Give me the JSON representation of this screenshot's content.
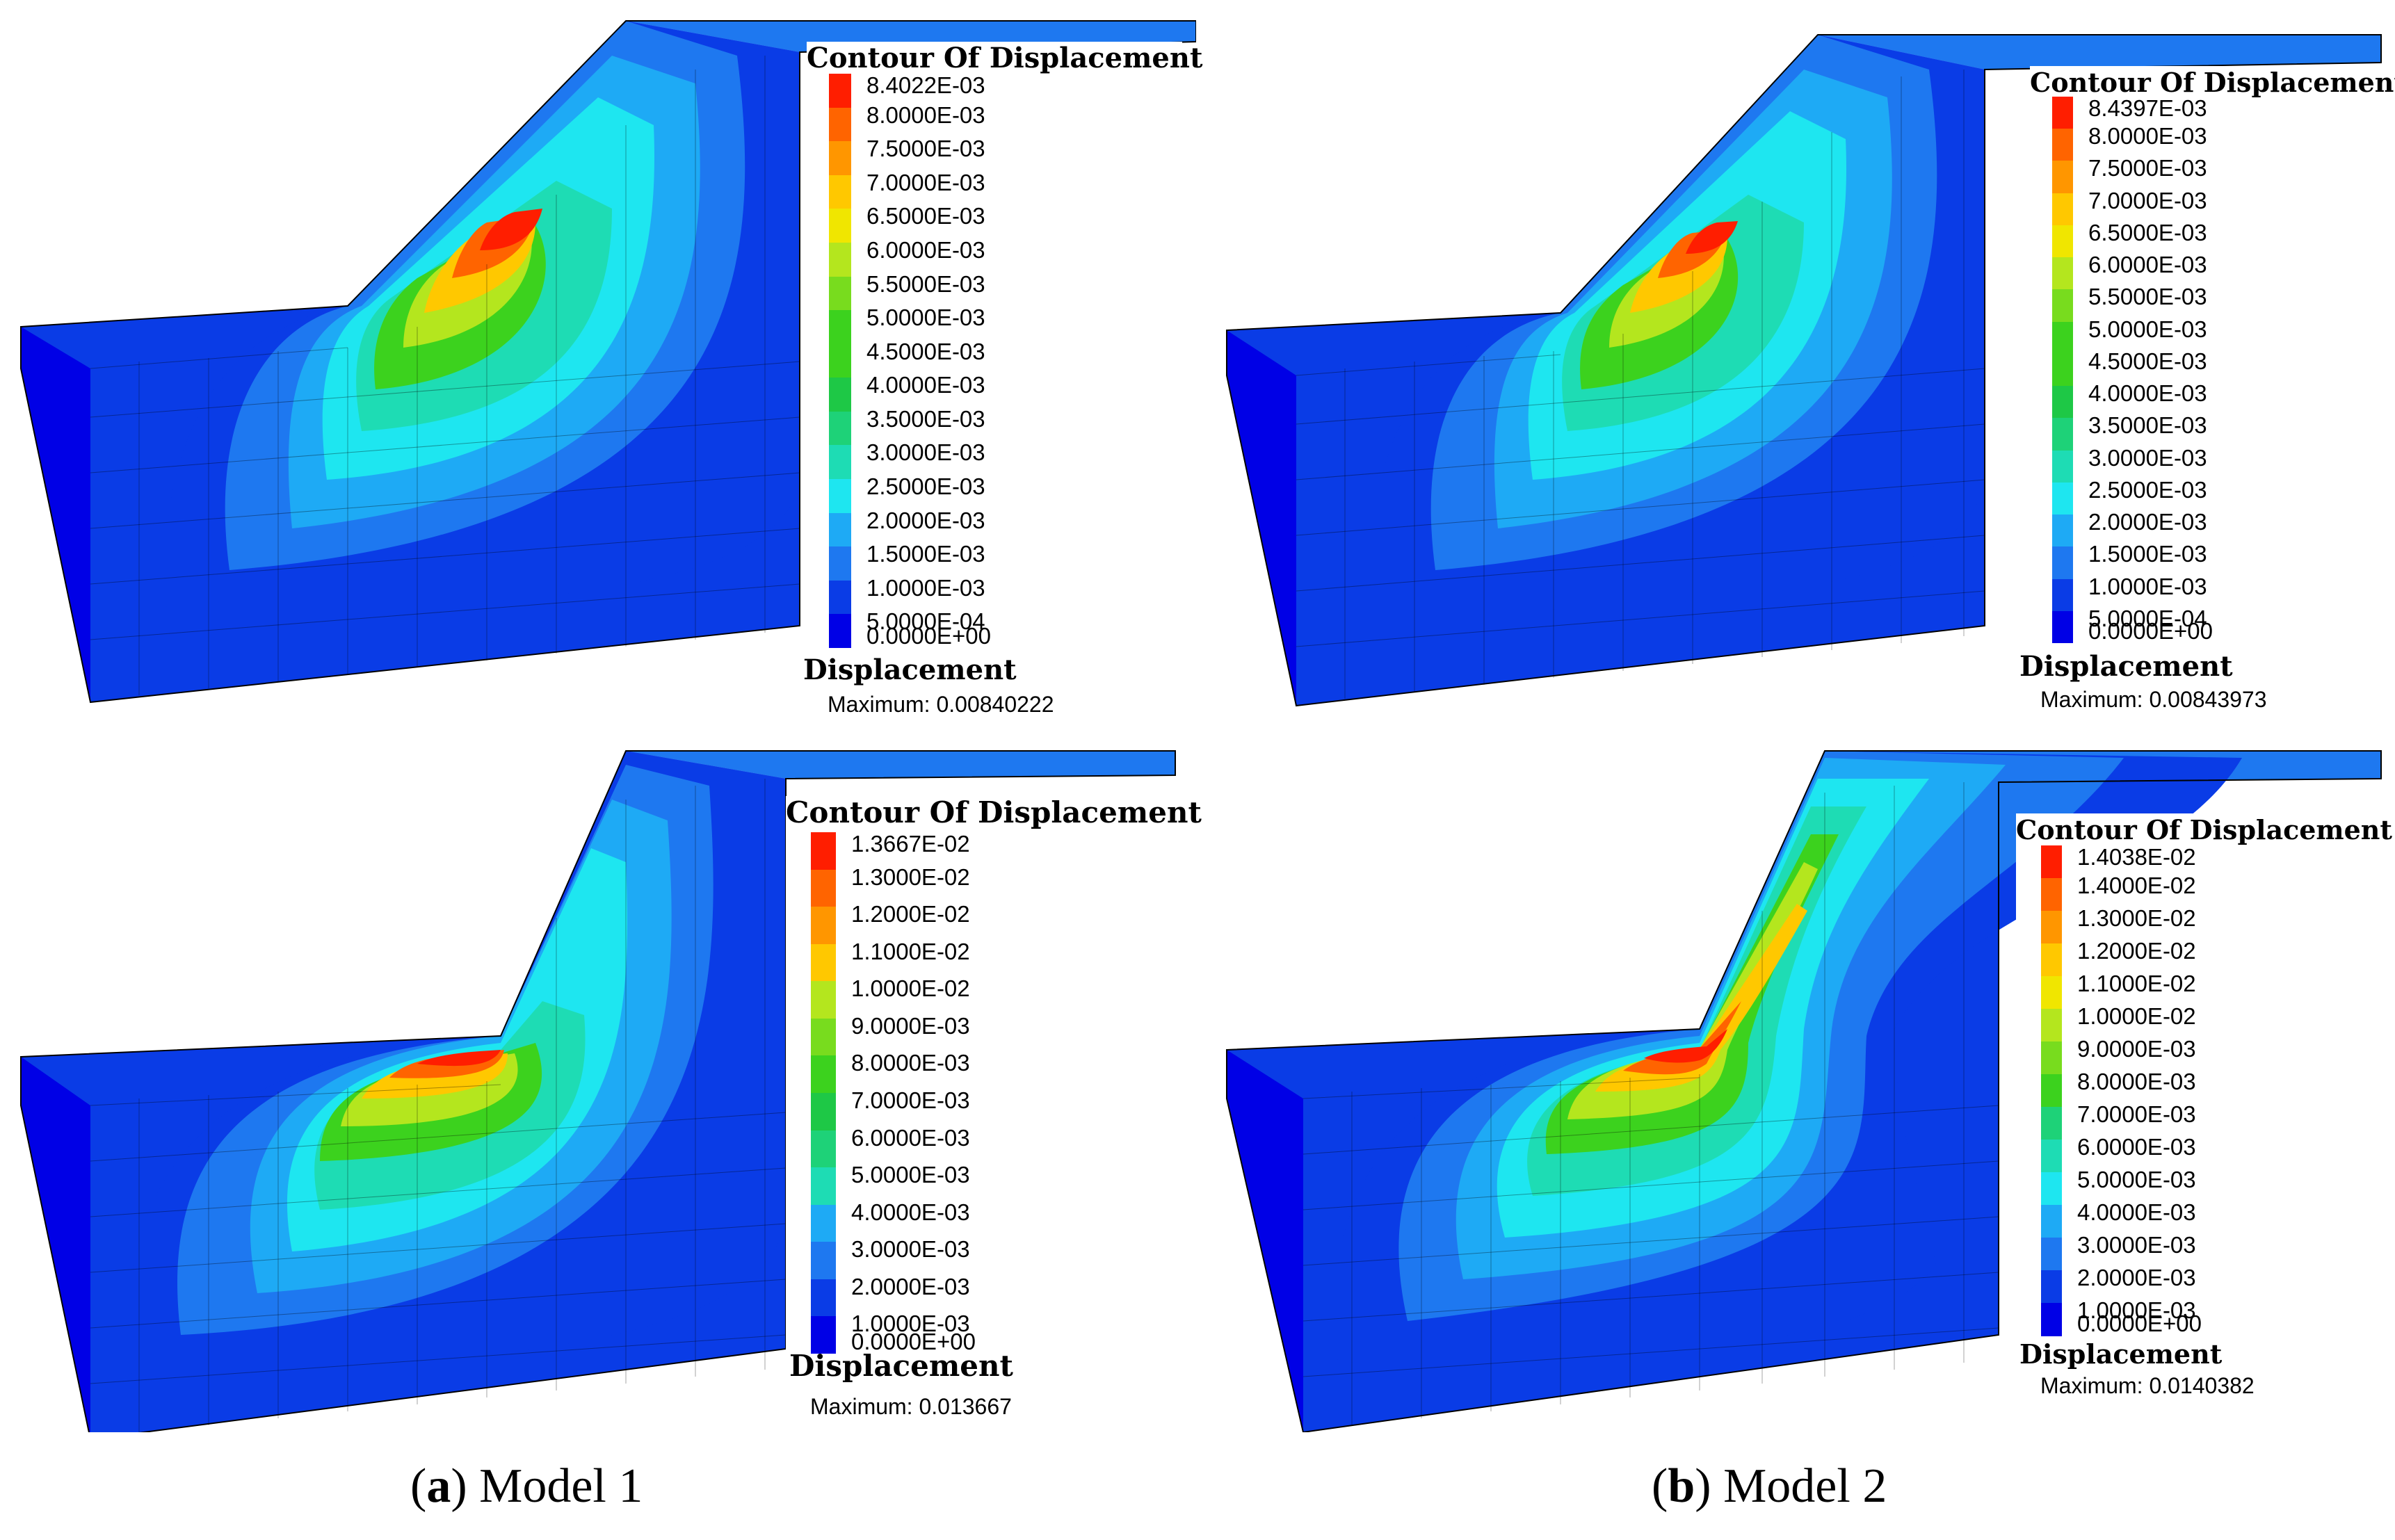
{
  "palette": [
    "#0000e6",
    "#0a3ce6",
    "#1e78f0",
    "#1eaaf5",
    "#1ee6f0",
    "#1edcb4",
    "#1ed278",
    "#1ec846",
    "#3cd21e",
    "#78dc1e",
    "#b4e61e",
    "#f0e600",
    "#ffc800",
    "#ff9600",
    "#ff6400",
    "#ff1e00"
  ],
  "panels": [
    {
      "legend_title": "Contour Of Displacement",
      "levels": [
        "8.4022E-03",
        "8.0000E-03",
        "7.5000E-03",
        "7.0000E-03",
        "6.5000E-03",
        "6.0000E-03",
        "5.5000E-03",
        "5.0000E-03",
        "4.5000E-03",
        "4.0000E-03",
        "3.5000E-03",
        "3.0000E-03",
        "2.5000E-03",
        "2.0000E-03",
        "1.5000E-03",
        "1.0000E-03",
        "5.0000E-04",
        "0.0000E+00"
      ],
      "quantity": "Displacement",
      "maximum": "Maximum: 0.00840222"
    },
    {
      "legend_title": "Contour Of Displacement",
      "levels": [
        "8.4397E-03",
        "8.0000E-03",
        "7.5000E-03",
        "7.0000E-03",
        "6.5000E-03",
        "6.0000E-03",
        "5.5000E-03",
        "5.0000E-03",
        "4.5000E-03",
        "4.0000E-03",
        "3.5000E-03",
        "3.0000E-03",
        "2.5000E-03",
        "2.0000E-03",
        "1.5000E-03",
        "1.0000E-03",
        "5.0000E-04",
        "0.0000E+00"
      ],
      "quantity": "Displacement",
      "maximum": "Maximum: 0.00843973"
    },
    {
      "legend_title": "Contour Of Displacement",
      "levels": [
        "1.3667E-02",
        "1.3000E-02",
        "1.2000E-02",
        "1.1000E-02",
        "1.0000E-02",
        "9.0000E-03",
        "8.0000E-03",
        "7.0000E-03",
        "6.0000E-03",
        "5.0000E-03",
        "4.0000E-03",
        "3.0000E-03",
        "2.0000E-03",
        "1.0000E-03",
        "0.0000E+00"
      ],
      "quantity": "Displacement",
      "maximum": "Maximum: 0.013667"
    },
    {
      "legend_title": "Contour Of Displacement",
      "levels": [
        "1.4038E-02",
        "1.4000E-02",
        "1.3000E-02",
        "1.2000E-02",
        "1.1000E-02",
        "1.0000E-02",
        "9.0000E-03",
        "8.0000E-03",
        "7.0000E-03",
        "6.0000E-03",
        "5.0000E-03",
        "4.0000E-03",
        "3.0000E-03",
        "2.0000E-03",
        "1.0000E-03",
        "0.0000E+00"
      ],
      "quantity": "Displacement",
      "maximum": "Maximum: 0.0140382"
    }
  ],
  "captions": {
    "a": {
      "letter": "a",
      "text": "Model 1"
    },
    "b": {
      "letter": "b",
      "text": "Model 2"
    }
  }
}
